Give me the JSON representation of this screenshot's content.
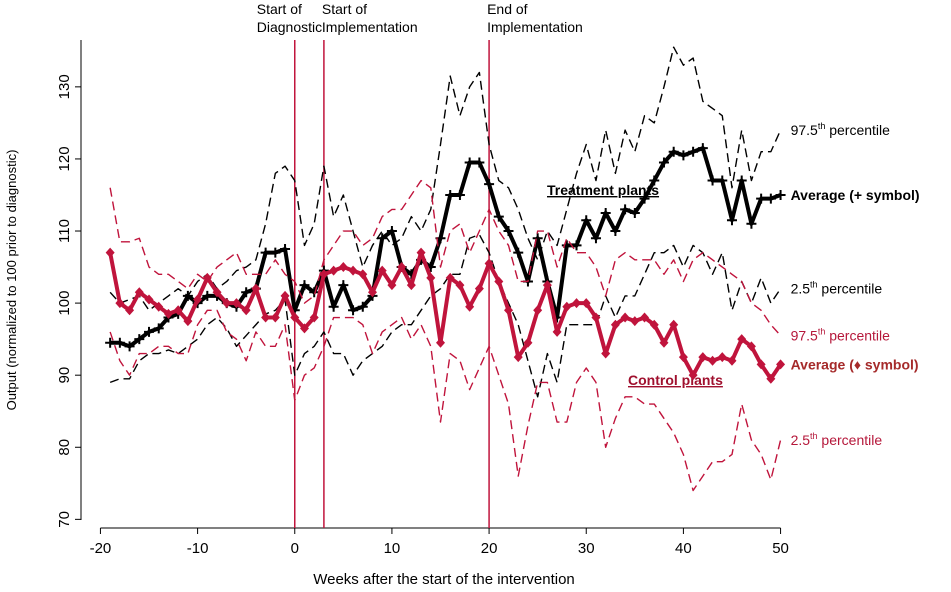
{
  "chart_data": {
    "type": "line",
    "xlabel": "Weeks after the start of the intervention",
    "ylabel": "Output (normalized to 100 prior to diagnostic)",
    "xlim": [
      -22,
      52
    ],
    "ylim": [
      68.8,
      136.5
    ],
    "xticks": [
      -20,
      -10,
      0,
      10,
      20,
      30,
      40,
      50
    ],
    "yticks": [
      70,
      80,
      90,
      100,
      110,
      120,
      130
    ],
    "x": [
      -19,
      -18,
      -17,
      -16,
      -15,
      -14,
      -13,
      -12,
      -11,
      -10,
      -9,
      -8,
      -7,
      -6,
      -5,
      -4,
      -3,
      -2,
      -1,
      0,
      1,
      2,
      3,
      4,
      5,
      6,
      7,
      8,
      9,
      10,
      11,
      12,
      13,
      14,
      15,
      16,
      17,
      18,
      19,
      20,
      21,
      22,
      23,
      24,
      25,
      26,
      27,
      28,
      29,
      30,
      31,
      32,
      33,
      34,
      35,
      36,
      37,
      38,
      39,
      40,
      41,
      42,
      43,
      44,
      45,
      46,
      47,
      48,
      49,
      50
    ],
    "events": [
      {
        "x": 0,
        "label": [
          "Start of",
          "Diagnostic"
        ]
      },
      {
        "x": 3,
        "label": [
          "Start of",
          "Implementation"
        ]
      },
      {
        "x": 20,
        "label": [
          "End of",
          "Implementation"
        ]
      }
    ],
    "event_color": "#c0143c",
    "groups": [
      {
        "label": "Treatment plants",
        "color": "#000000"
      },
      {
        "label": "Control plants",
        "color": "#a0102e"
      }
    ],
    "series": [
      {
        "name": {
          "text": "97.5",
          "sup": "th",
          "after": " percentile"
        },
        "color": "#000000",
        "label_color": "#000000",
        "style": "dashed",
        "values": [
          101.5,
          100,
          100.5,
          101,
          99,
          100,
          101,
          102,
          101,
          103,
          104,
          102,
          103,
          104.5,
          105,
          106,
          111,
          118,
          119,
          117,
          108,
          111,
          119,
          112,
          115,
          110,
          105,
          108,
          110,
          108,
          109,
          112,
          110,
          113,
          122,
          131.5,
          126,
          130,
          132,
          122,
          117,
          116,
          113,
          109,
          106,
          110,
          108,
          113,
          118,
          122,
          117,
          124,
          118,
          124,
          121,
          126,
          125,
          130,
          135.5,
          133,
          134,
          128,
          127,
          126,
          116,
          124,
          117,
          121,
          121,
          124
        ]
      },
      {
        "name": "Average (+ symbol)",
        "color": "#000000",
        "label_color": "#000000",
        "style": "solid",
        "marker": "plus",
        "bold": true,
        "values": [
          94.5,
          94.5,
          94,
          95,
          96,
          96.5,
          98,
          98.5,
          101,
          100,
          101,
          101,
          100,
          99.5,
          101.5,
          102,
          107,
          107,
          107.5,
          99,
          102.5,
          101.5,
          104.5,
          99.5,
          102.5,
          99,
          99.5,
          101,
          109,
          110,
          105,
          104,
          106,
          105,
          109,
          115,
          115,
          119.5,
          119.5,
          116.5,
          112,
          110,
          107,
          103,
          109,
          103,
          98,
          108,
          108,
          111.5,
          109,
          112.5,
          110,
          113,
          112.5,
          114.5,
          117,
          119.5,
          121,
          120.5,
          121,
          121.5,
          117,
          117,
          111.5,
          117,
          111,
          114.5,
          114.5,
          115
        ]
      },
      {
        "name": {
          "text": "2.5",
          "sup": "th",
          "after": " percentile"
        },
        "color": "#000000",
        "label_color": "#000000",
        "style": "dashed",
        "values": [
          89,
          89.5,
          89.5,
          92,
          93,
          93,
          93.5,
          93,
          94,
          95,
          97,
          98,
          96.5,
          94,
          95.5,
          97,
          98.5,
          99,
          100.5,
          90,
          93,
          94,
          96,
          93,
          93,
          90,
          92,
          93,
          94,
          96,
          97,
          97,
          99,
          101,
          102,
          104,
          104,
          109,
          109.5,
          107,
          103,
          100,
          97,
          92,
          87,
          93,
          89,
          97,
          97,
          97,
          97,
          101,
          98,
          101,
          101,
          104,
          107,
          107,
          108,
          105,
          108,
          107,
          104,
          107,
          99,
          103,
          100,
          103.5,
          100,
          102
        ]
      },
      {
        "name": {
          "text": "97.5",
          "sup": "th",
          "after": " percentile"
        },
        "color": "#c0143c",
        "label_color": "#b5173a",
        "style": "dashed",
        "values": [
          116,
          108.5,
          108.5,
          109,
          105,
          104,
          104,
          103,
          102,
          104,
          103,
          105,
          106,
          107,
          104,
          104,
          104,
          106,
          104,
          103,
          100,
          101,
          106,
          108,
          110,
          110,
          108,
          109,
          112,
          113,
          113,
          115,
          117,
          116,
          105,
          110,
          111,
          107,
          110,
          113,
          110,
          108,
          103,
          103,
          110,
          110,
          105,
          109,
          107,
          107,
          105,
          101,
          106,
          107,
          106,
          106,
          106,
          104,
          106,
          103,
          106,
          107,
          106,
          105,
          104,
          103,
          100,
          99,
          97,
          95.5
        ]
      },
      {
        "name": "Average (♦ symbol)",
        "color": "#c0143c",
        "label_color": "#a52a2a",
        "style": "solid",
        "marker": "diamond",
        "bold": true,
        "values": [
          107,
          100,
          99,
          101.5,
          100.5,
          99.5,
          98.5,
          99,
          97.5,
          100.5,
          103.5,
          101.5,
          100,
          100,
          99,
          102,
          98,
          98,
          101,
          98,
          96.5,
          98,
          104,
          104.5,
          105,
          104.5,
          104,
          101.5,
          104.5,
          102.5,
          105,
          102.5,
          107,
          103.5,
          94.5,
          103.5,
          102.5,
          99.5,
          102,
          105.5,
          103,
          99,
          92.5,
          94.5,
          99,
          102.5,
          96,
          99.5,
          100,
          100,
          98,
          93,
          97,
          98,
          97.5,
          98,
          97,
          94.5,
          97,
          92.5,
          90,
          92.5,
          92,
          92.5,
          92,
          95,
          94,
          91.5,
          89.5,
          91.5
        ]
      },
      {
        "name": {
          "text": "2.5",
          "sup": "th",
          "after": " percentile"
        },
        "color": "#c0143c",
        "label_color": "#b5173a",
        "style": "dashed",
        "values": [
          96,
          92,
          90,
          93,
          93,
          94,
          94,
          93,
          93,
          97,
          99,
          99,
          96,
          95,
          92,
          96,
          94,
          94,
          97,
          86.5,
          90,
          91,
          94,
          98,
          98,
          98,
          97,
          93,
          96,
          97,
          98,
          95,
          97,
          94,
          83.5,
          93,
          92,
          88,
          91,
          94,
          90,
          86,
          76,
          83,
          89,
          89,
          83.5,
          83.5,
          89,
          91,
          89,
          80,
          84,
          87,
          87,
          86,
          86,
          84,
          82,
          79,
          74,
          76,
          78,
          78,
          79,
          86,
          81,
          79,
          75.5,
          81
        ]
      }
    ]
  }
}
